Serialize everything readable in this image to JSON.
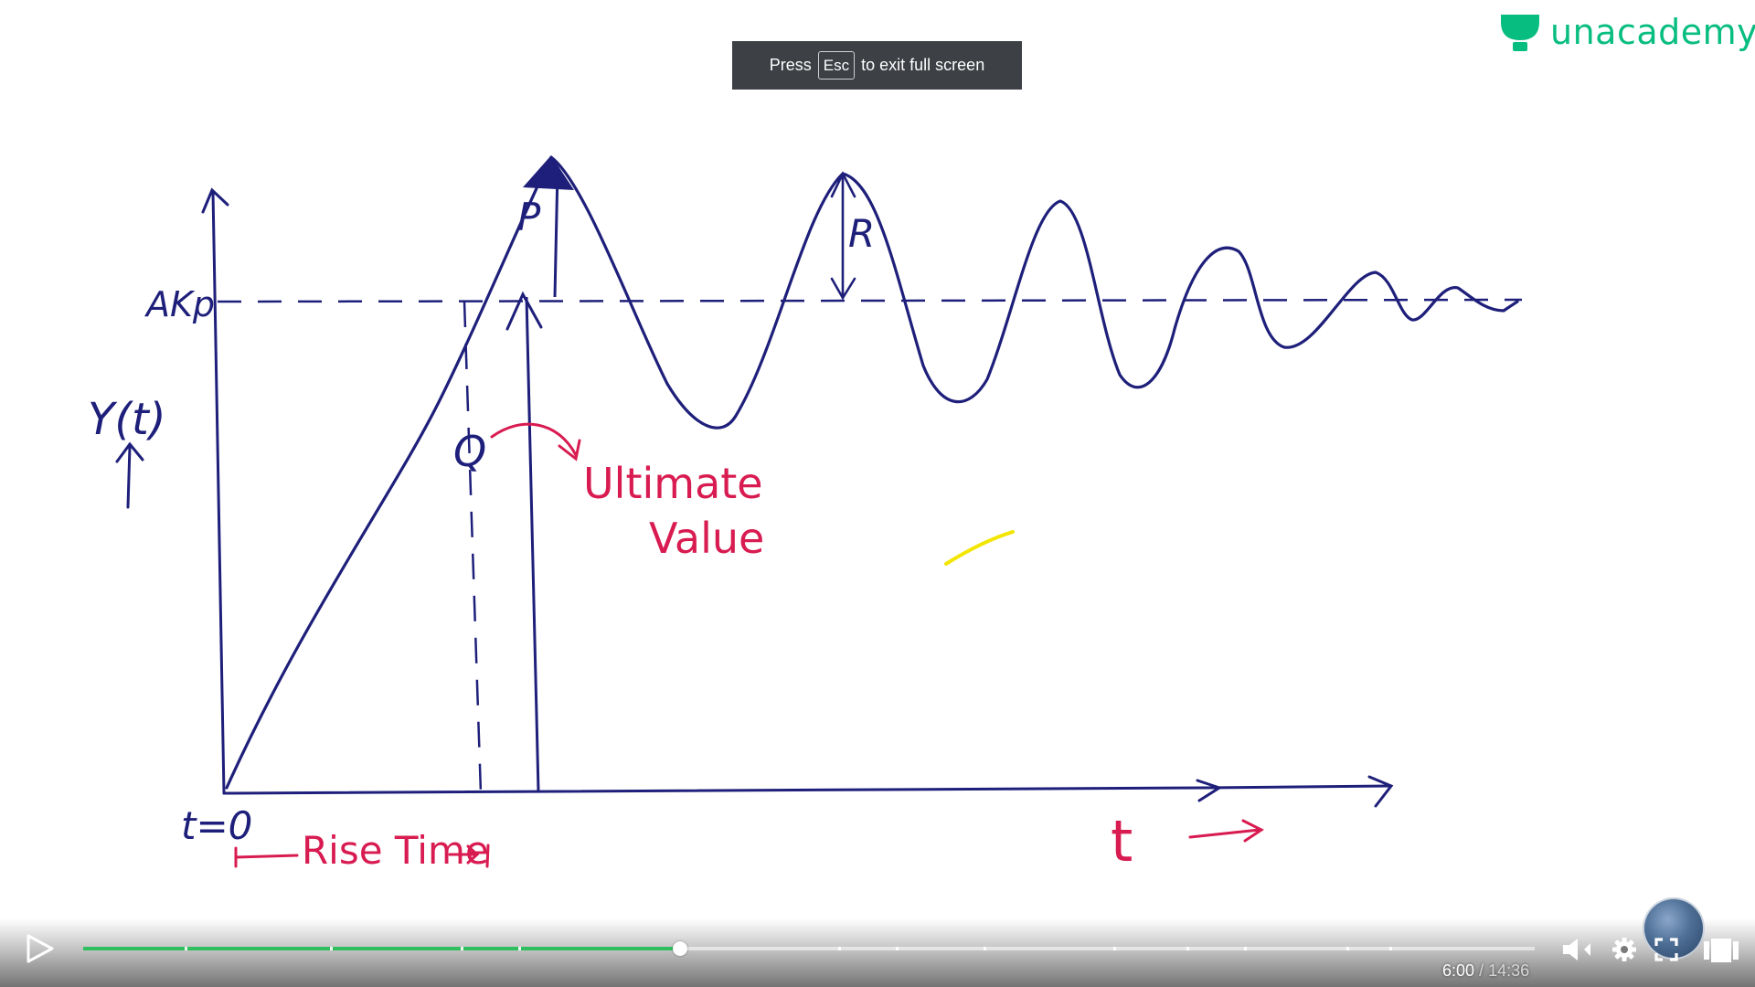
{
  "brand": {
    "name": "unacademy",
    "color": "#08bd80"
  },
  "fullscreen_hint": {
    "prefix": "Press",
    "key": "Esc",
    "suffix": "to exit full screen"
  },
  "board": {
    "y_axis_label": "Y(t)",
    "setpoint_label": "AKp",
    "peak_label": "P",
    "level_label": "Q",
    "overshoot_label": "R",
    "annotation_line1": "Ultimate",
    "annotation_line2": "Value",
    "origin_label": "t=0",
    "rise_time_label": "Rise Time",
    "x_axis_label": "t",
    "ink_blue": "#1e1f7a",
    "ink_red": "#d81b50",
    "ink_yellow": "#f2e600"
  },
  "player": {
    "state": "paused",
    "play_icon": "play-icon",
    "current_time": "6:00",
    "separator": "/",
    "total_time": "14:36",
    "progress_fraction": 0.411,
    "accent_color": "#2fbf5f",
    "icons": {
      "mute": "volume-muted-icon",
      "settings": "gear-icon",
      "fullscreen": "fullscreen-icon",
      "theater": "theater-mode-icon"
    }
  }
}
